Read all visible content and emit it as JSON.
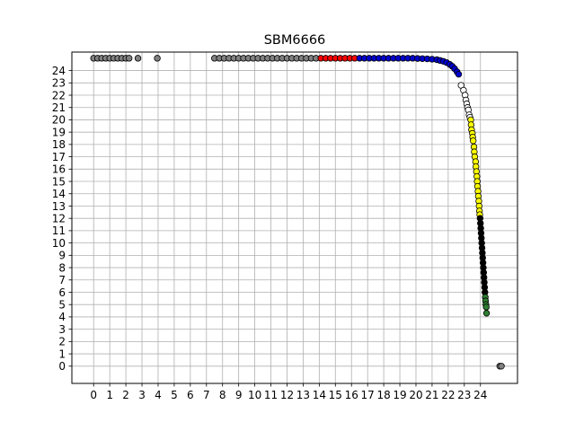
{
  "chart_data": {
    "type": "scatter",
    "title": "SBM6666",
    "xlabel": "",
    "ylabel": "",
    "xlim": [
      -1.35,
      26.3
    ],
    "ylim": [
      -1.4,
      25.5
    ],
    "xticks": [
      "0",
      "1",
      "2",
      "3",
      "4",
      "5",
      "6",
      "7",
      "8",
      "9",
      "10",
      "11",
      "12",
      "13",
      "14",
      "15",
      "16",
      "17",
      "18",
      "19",
      "20",
      "21",
      "22",
      "23",
      "24"
    ],
    "yticks": [
      "0",
      "1",
      "2",
      "3",
      "4",
      "5",
      "6",
      "7",
      "8",
      "9",
      "10",
      "11",
      "12",
      "13",
      "14",
      "15",
      "16",
      "17",
      "18",
      "19",
      "20",
      "21",
      "22",
      "23",
      "24"
    ],
    "grid": true,
    "legend": "none",
    "top_row_y": 25.0,
    "series": [
      {
        "color": "#808080",
        "points": [
          [
            0,
            25
          ],
          [
            0.25,
            25
          ],
          [
            0.5,
            25
          ],
          [
            0.75,
            25
          ],
          [
            1,
            25
          ],
          [
            1.25,
            25
          ],
          [
            1.5,
            25
          ],
          [
            1.75,
            25
          ],
          [
            2,
            25
          ],
          [
            2.2,
            25
          ],
          [
            2.75,
            25
          ],
          [
            3.95,
            25
          ]
        ]
      },
      {
        "color": "#808080",
        "points": [
          [
            7.5,
            25
          ],
          [
            7.8,
            25
          ],
          [
            8.1,
            25
          ],
          [
            8.4,
            25
          ],
          [
            8.7,
            25
          ],
          [
            9,
            25
          ],
          [
            9.3,
            25
          ],
          [
            9.6,
            25
          ],
          [
            9.9,
            25
          ],
          [
            10.2,
            25
          ],
          [
            10.5,
            25
          ],
          [
            10.8,
            25
          ],
          [
            11.1,
            25
          ],
          [
            11.4,
            25
          ],
          [
            11.7,
            25
          ],
          [
            12,
            25
          ],
          [
            12.3,
            25
          ],
          [
            12.6,
            25
          ],
          [
            12.9,
            25
          ],
          [
            13.2,
            25
          ],
          [
            13.5,
            25
          ],
          [
            13.8,
            25
          ]
        ]
      },
      {
        "color": "#ff0000",
        "points": [
          [
            14.1,
            25
          ],
          [
            14.4,
            25
          ],
          [
            14.7,
            25
          ],
          [
            15,
            25
          ],
          [
            15.3,
            25
          ],
          [
            15.6,
            25
          ],
          [
            15.9,
            25
          ],
          [
            16.2,
            25
          ]
        ]
      },
      {
        "color": "#0000cc",
        "points": [
          [
            16.5,
            25
          ],
          [
            16.8,
            25
          ],
          [
            17.1,
            25
          ],
          [
            17.4,
            25
          ],
          [
            17.7,
            25
          ],
          [
            18,
            25
          ],
          [
            18.3,
            25
          ],
          [
            18.6,
            25
          ],
          [
            18.9,
            25
          ],
          [
            19.2,
            25
          ],
          [
            19.5,
            25
          ],
          [
            19.8,
            25
          ],
          [
            20.1,
            24.98
          ],
          [
            20.4,
            24.97
          ],
          [
            20.7,
            24.95
          ],
          [
            21,
            24.92
          ],
          [
            21.3,
            24.88
          ],
          [
            21.5,
            24.82
          ],
          [
            21.7,
            24.75
          ],
          [
            21.9,
            24.65
          ],
          [
            22.1,
            24.5
          ],
          [
            22.25,
            24.35
          ],
          [
            22.4,
            24.15
          ],
          [
            22.55,
            23.9
          ],
          [
            22.65,
            23.7
          ]
        ]
      },
      {
        "color": "#ffffff",
        "points": [
          [
            22.8,
            22.8
          ],
          [
            22.95,
            22.4
          ],
          [
            23.05,
            22.0
          ],
          [
            23.1,
            21.6
          ],
          [
            23.15,
            21.3
          ],
          [
            23.2,
            21.0
          ],
          [
            23.25,
            20.8
          ],
          [
            23.3,
            20.4
          ],
          [
            23.35,
            20.2
          ]
        ]
      },
      {
        "color": "#ffff00",
        "points": [
          [
            23.4,
            20.0
          ],
          [
            23.42,
            19.6
          ],
          [
            23.45,
            19.2
          ],
          [
            23.5,
            18.9
          ],
          [
            23.52,
            18.6
          ],
          [
            23.55,
            18.3
          ],
          [
            23.6,
            17.8
          ],
          [
            23.62,
            17.4
          ],
          [
            23.65,
            17.0
          ],
          [
            23.7,
            16.6
          ],
          [
            23.72,
            16.2
          ],
          [
            23.75,
            15.8
          ],
          [
            23.78,
            15.4
          ],
          [
            23.8,
            15.0
          ],
          [
            23.82,
            14.6
          ],
          [
            23.85,
            14.2
          ],
          [
            23.87,
            13.8
          ],
          [
            23.9,
            13.4
          ],
          [
            23.92,
            13.0
          ],
          [
            23.94,
            12.6
          ],
          [
            23.96,
            12.3
          ]
        ]
      },
      {
        "color": "#000000",
        "points": [
          [
            23.98,
            12.0
          ],
          [
            24.0,
            11.6
          ],
          [
            24.02,
            11.2
          ],
          [
            24.04,
            10.8
          ],
          [
            24.06,
            10.4
          ],
          [
            24.08,
            10.0
          ],
          [
            24.1,
            9.6
          ],
          [
            24.12,
            9.2
          ],
          [
            24.14,
            8.8
          ],
          [
            24.16,
            8.4
          ],
          [
            24.18,
            8.0
          ],
          [
            24.2,
            7.6
          ],
          [
            24.22,
            7.2
          ],
          [
            24.24,
            6.8
          ],
          [
            24.26,
            6.4
          ],
          [
            24.28,
            6.0
          ]
        ]
      },
      {
        "color": "#2e7d32",
        "points": [
          [
            24.3,
            5.6
          ],
          [
            24.32,
            5.3
          ],
          [
            24.34,
            5.0
          ],
          [
            24.36,
            4.8
          ],
          [
            24.38,
            4.3
          ]
        ]
      },
      {
        "color": "#808080",
        "points": [
          [
            25.2,
            0.0
          ],
          [
            25.3,
            0.0
          ]
        ]
      }
    ]
  }
}
